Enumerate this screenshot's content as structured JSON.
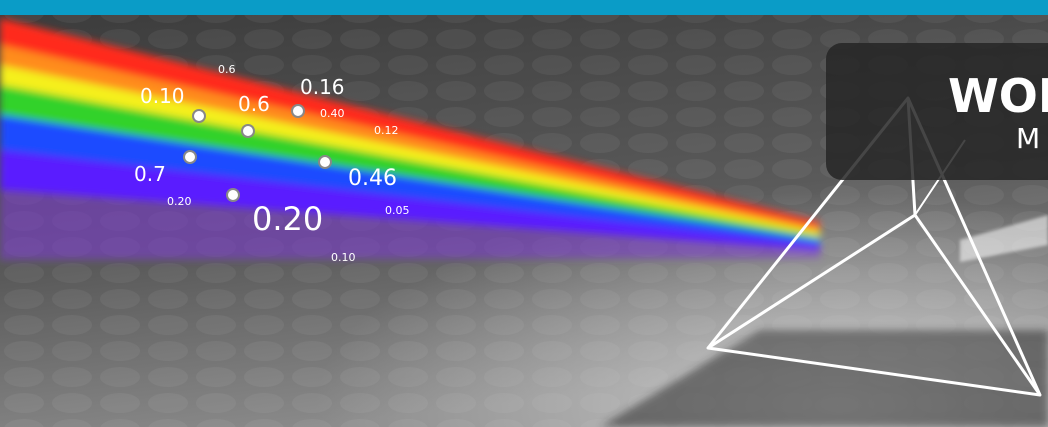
{
  "banner": {
    "labels": [
      "0.6",
      "0.10",
      "0.6",
      "0.16",
      "0.40",
      "0.12",
      "0.7",
      "0.46",
      "0.20",
      "0.20",
      "0.05",
      "0.10"
    ],
    "panel": {
      "title": "WOI",
      "subtitle": "M"
    }
  }
}
